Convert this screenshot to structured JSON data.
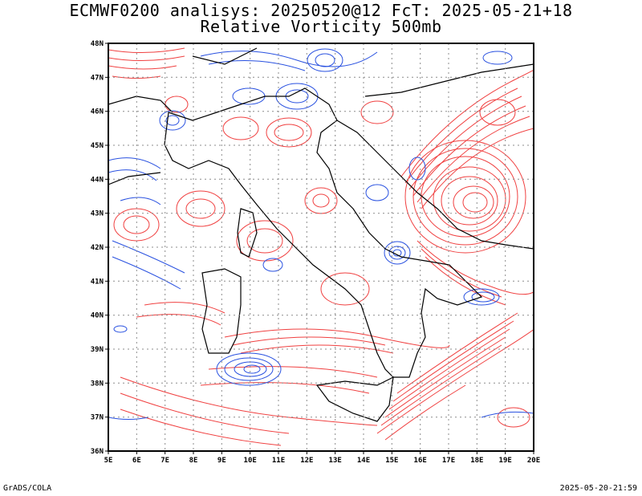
{
  "header": {
    "title_line1": "ECMWF0200 analisys: 20250520@12 FcT: 2025-05-21+18",
    "title_line2": "Relative Vorticity 500mb"
  },
  "footer": {
    "left": "GrADS/COLA",
    "right": "2025-05-20-21:59"
  },
  "axes": {
    "lon_labels": [
      "5E",
      "6E",
      "7E",
      "8E",
      "9E",
      "10E",
      "11E",
      "12E",
      "13E",
      "14E",
      "15E",
      "16E",
      "17E",
      "18E",
      "19E",
      "20E"
    ],
    "lat_labels": [
      "36N",
      "37N",
      "38N",
      "39N",
      "40N",
      "41N",
      "42N",
      "43N",
      "44N",
      "45N",
      "46N",
      "47N",
      "48N"
    ]
  },
  "colors": {
    "positive": "#f04040",
    "negative": "#2850e0",
    "coast": "#000000",
    "grid": "#8c8c8c"
  }
}
